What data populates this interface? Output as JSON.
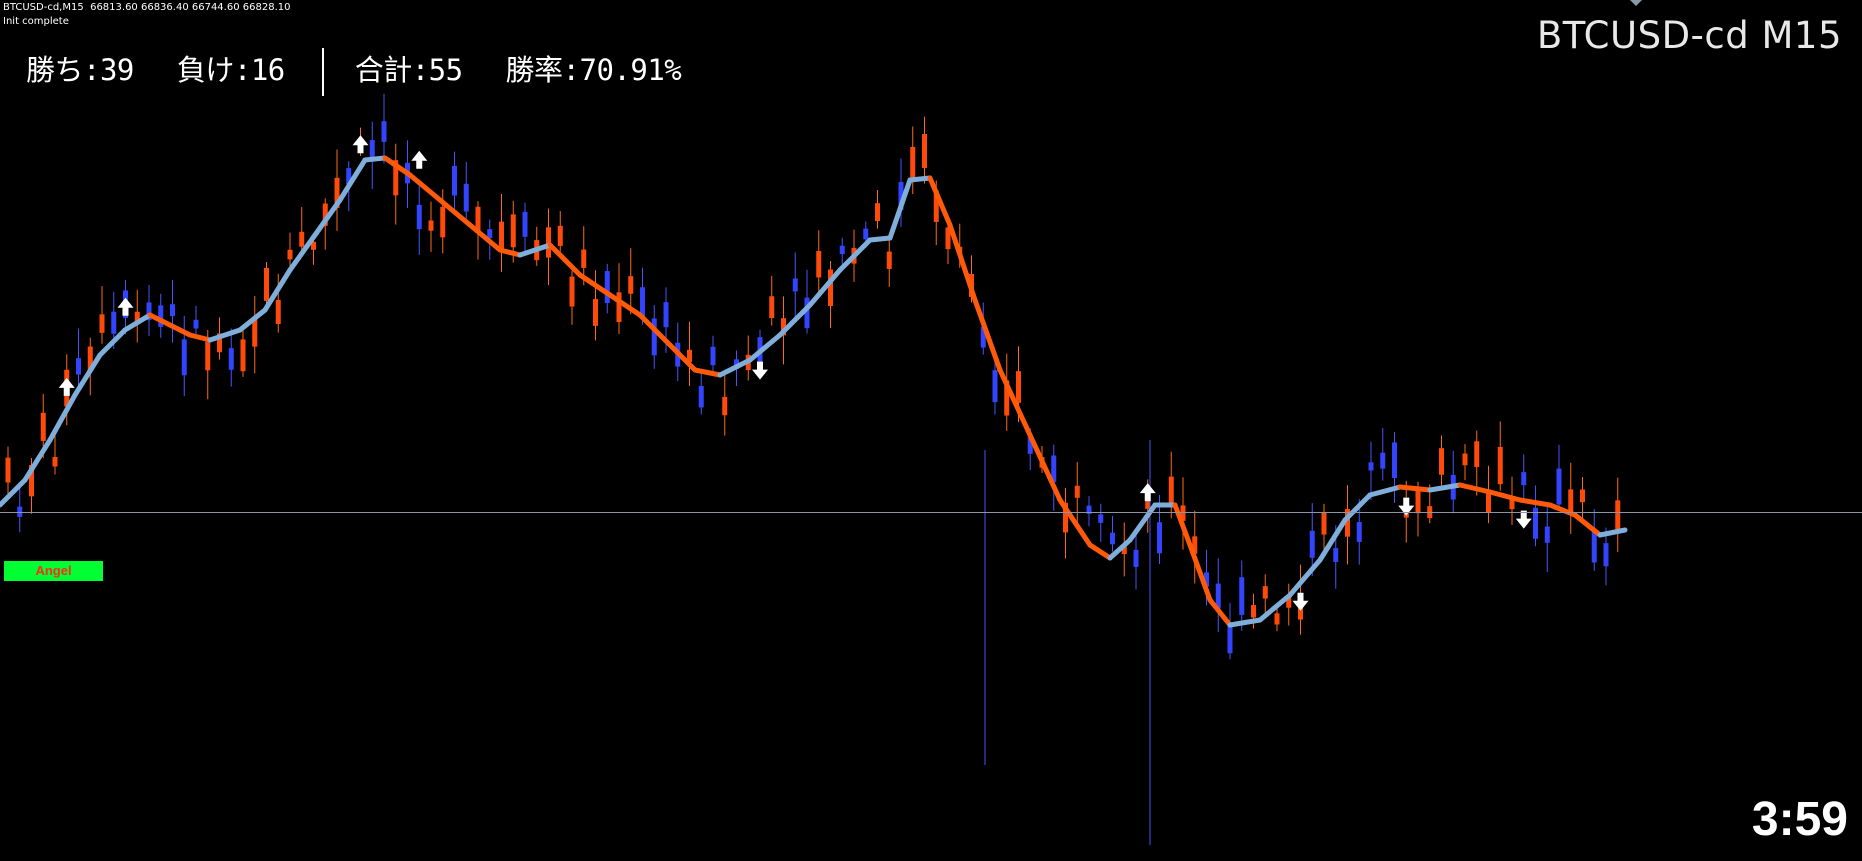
{
  "header": {
    "info": "BTCUSD-cd,M15  66813.60 66836.40 66744.60 66828.10",
    "status": "Init complete"
  },
  "symbol_title": "BTCUSD-cd M15",
  "stats": {
    "wins": "勝ち:39",
    "losses": "負け:16",
    "total": "合計:55",
    "win_rate": "勝率:70.91%"
  },
  "indicator_label": "Angel",
  "countdown": "3:59",
  "colors": {
    "background": "#000000",
    "bull_candle": "#3344ff",
    "bear_candle": "#ff4a0a",
    "wick_bull": "#4455ff",
    "wick_bear": "#ff6a10",
    "ma_up": "#7faedb",
    "ma_down": "#ff5a0a",
    "arrow": "#ffffff",
    "price_line": "#8a96a6"
  },
  "signals": [
    {
      "dir": "up",
      "bar": 5
    },
    {
      "dir": "up",
      "bar": 10
    },
    {
      "dir": "up",
      "bar": 30
    },
    {
      "dir": "up",
      "bar": 35
    },
    {
      "dir": "down",
      "bar": 64
    },
    {
      "dir": "up",
      "bar": 97
    },
    {
      "dir": "down",
      "bar": 110
    },
    {
      "dir": "down",
      "bar": 119
    },
    {
      "dir": "down",
      "bar": 129
    }
  ]
}
